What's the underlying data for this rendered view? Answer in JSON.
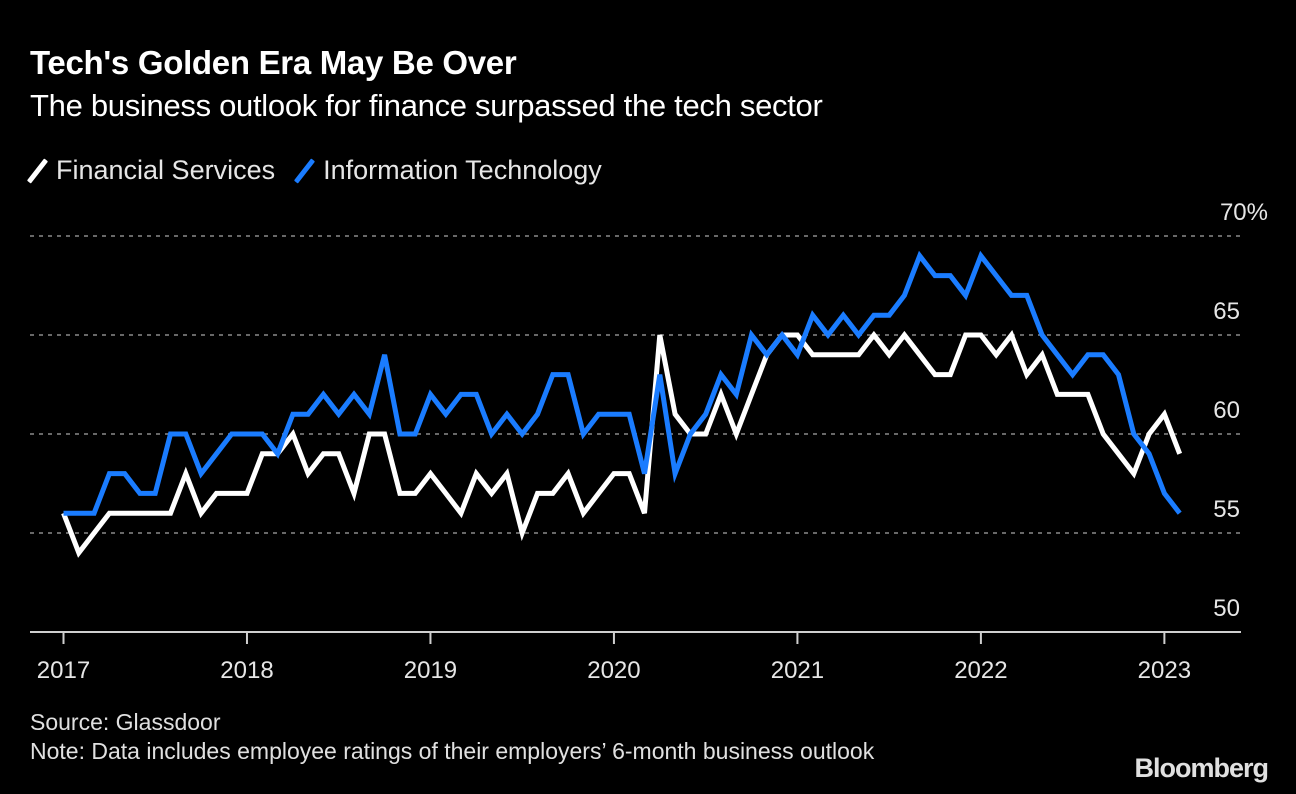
{
  "header": {
    "title": "Tech's Golden Era May Be Over",
    "subtitle": "The business outlook for finance surpassed the tech sector"
  },
  "legend": [
    {
      "label": "Financial Services",
      "color": "#ffffff"
    },
    {
      "label": "Information Technology",
      "color": "#1a7cff"
    }
  ],
  "footer": {
    "source": "Source: Glassdoor",
    "note": "Note: Data includes employee ratings of their employers’ 6-month business outlook",
    "brand": "Bloomberg"
  },
  "chart_data": {
    "type": "line",
    "title": "Tech's Golden Era May Be Over",
    "subtitle": "The business outlook for finance surpassed the tech sector",
    "xlabel": "",
    "ylabel": "",
    "y_unit": "%",
    "ylim": [
      50,
      70
    ],
    "yticks": [
      50,
      55,
      60,
      65,
      70
    ],
    "ytick_labels": [
      "50",
      "55",
      "60",
      "65",
      "70%"
    ],
    "xticks": [
      "2017",
      "2018",
      "2019",
      "2020",
      "2021",
      "2022",
      "2023"
    ],
    "x_start": "2017-01",
    "x_end_axis": "2023-06",
    "x_frequency": "monthly",
    "grid": "horizontal dotted",
    "legend_position": "top-left",
    "series": [
      {
        "name": "Financial Services",
        "color": "#ffffff",
        "values": [
          56,
          54,
          55,
          56,
          56,
          56,
          56,
          56,
          58,
          56,
          57,
          57,
          57,
          59,
          59,
          60,
          58,
          59,
          59,
          57,
          60,
          60,
          57,
          57,
          58,
          57,
          56,
          58,
          57,
          58,
          55,
          57,
          57,
          58,
          56,
          57,
          58,
          58,
          56,
          65,
          61,
          60,
          60,
          62,
          60,
          62,
          64,
          65,
          65,
          64,
          64,
          64,
          64,
          65,
          64,
          65,
          64,
          63,
          63,
          65,
          65,
          64,
          65,
          63,
          64,
          62,
          62,
          62,
          60,
          59,
          58,
          60,
          61,
          59
        ]
      },
      {
        "name": "Information Technology",
        "color": "#1a7cff",
        "values": [
          56,
          56,
          56,
          58,
          58,
          57,
          57,
          60,
          60,
          58,
          59,
          60,
          60,
          60,
          59,
          61,
          61,
          62,
          61,
          62,
          61,
          64,
          60,
          60,
          62,
          61,
          62,
          62,
          60,
          61,
          60,
          61,
          63,
          63,
          60,
          61,
          61,
          61,
          58,
          63,
          58,
          60,
          61,
          63,
          62,
          65,
          64,
          65,
          64,
          66,
          65,
          66,
          65,
          66,
          66,
          67,
          69,
          68,
          68,
          67,
          69,
          68,
          67,
          67,
          65,
          64,
          63,
          64,
          64,
          63,
          60,
          59,
          57,
          56
        ]
      }
    ]
  }
}
